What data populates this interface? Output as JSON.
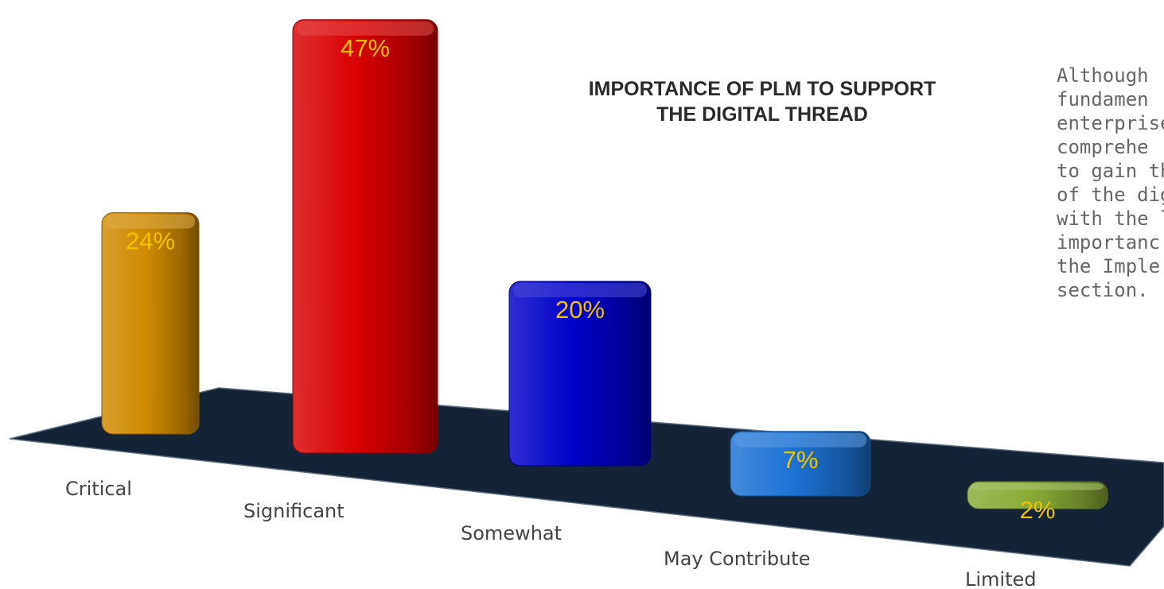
{
  "chart_data": {
    "type": "bar",
    "title_lines": [
      "IMPORTANCE OF PLM TO SUPPORT",
      "THE DIGITAL THREAD"
    ],
    "categories": [
      "Critical",
      "Significant",
      "Somewhat",
      "May Contribute",
      "Limited"
    ],
    "values": [
      24,
      47,
      20,
      7,
      2
    ],
    "value_labels": [
      "24%",
      "47%",
      "20%",
      "7%",
      "2%"
    ],
    "colors": [
      "#d08a00",
      "#d80000",
      "#0000c8",
      "#1c72d4",
      "#8aab36"
    ],
    "ylim": [
      0,
      50
    ],
    "grid": false,
    "legend": "none",
    "style": "3d"
  },
  "side_text": {
    "lines": [
      "Although",
      "fundamen",
      "enterprise",
      "comprehe",
      "to gain th",
      "of the dig",
      "with the l",
      "importanc",
      "the Imple",
      "section."
    ]
  }
}
